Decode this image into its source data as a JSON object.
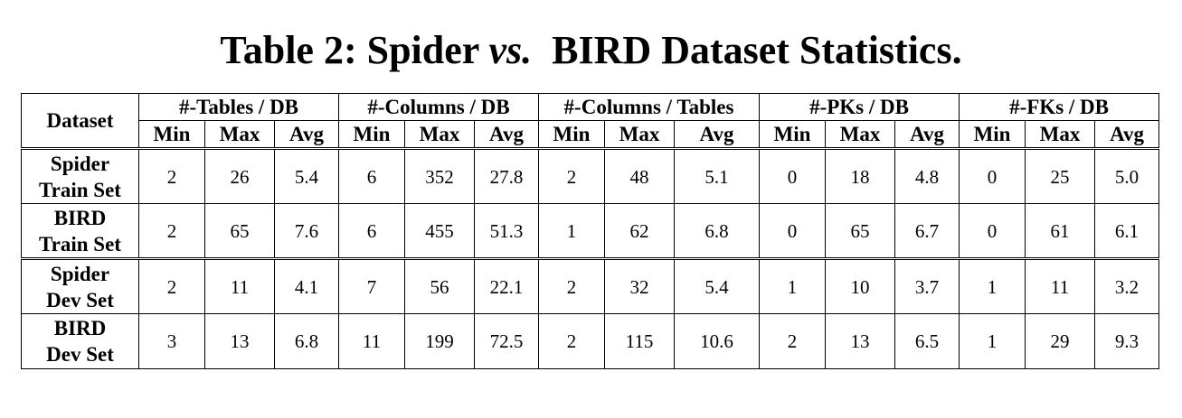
{
  "title": {
    "prefix": "Table 2: Spider ",
    "vs": "vs.",
    "suffix": "  BIRD Dataset Statistics."
  },
  "header": {
    "dataset_label": "Dataset",
    "groups": [
      "#-Tables / DB",
      "#-Columns / DB",
      "#-Columns / Tables",
      "#-PKs / DB",
      "#-FKs / DB"
    ],
    "sub": [
      "Min",
      "Max",
      "Avg"
    ]
  },
  "rows": [
    {
      "name1": "Spider",
      "name2": "Train Set",
      "values": [
        "2",
        "26",
        "5.4",
        "6",
        "352",
        "27.8",
        "2",
        "48",
        "5.1",
        "0",
        "18",
        "4.8",
        "0",
        "25",
        "5.0"
      ]
    },
    {
      "name1": "BIRD",
      "name2": "Train Set",
      "values": [
        "2",
        "65",
        "7.6",
        "6",
        "455",
        "51.3",
        "1",
        "62",
        "6.8",
        "0",
        "65",
        "6.7",
        "0",
        "61",
        "6.1"
      ]
    },
    {
      "name1": "Spider",
      "name2": "Dev Set",
      "values": [
        "2",
        "11",
        "4.1",
        "7",
        "56",
        "22.1",
        "2",
        "32",
        "5.4",
        "1",
        "10",
        "3.7",
        "1",
        "11",
        "3.2"
      ]
    },
    {
      "name1": "BIRD",
      "name2": "Dev Set",
      "values": [
        "3",
        "13",
        "6.8",
        "11",
        "199",
        "72.5",
        "2",
        "115",
        "10.6",
        "2",
        "13",
        "6.5",
        "1",
        "29",
        "9.3"
      ]
    }
  ]
}
